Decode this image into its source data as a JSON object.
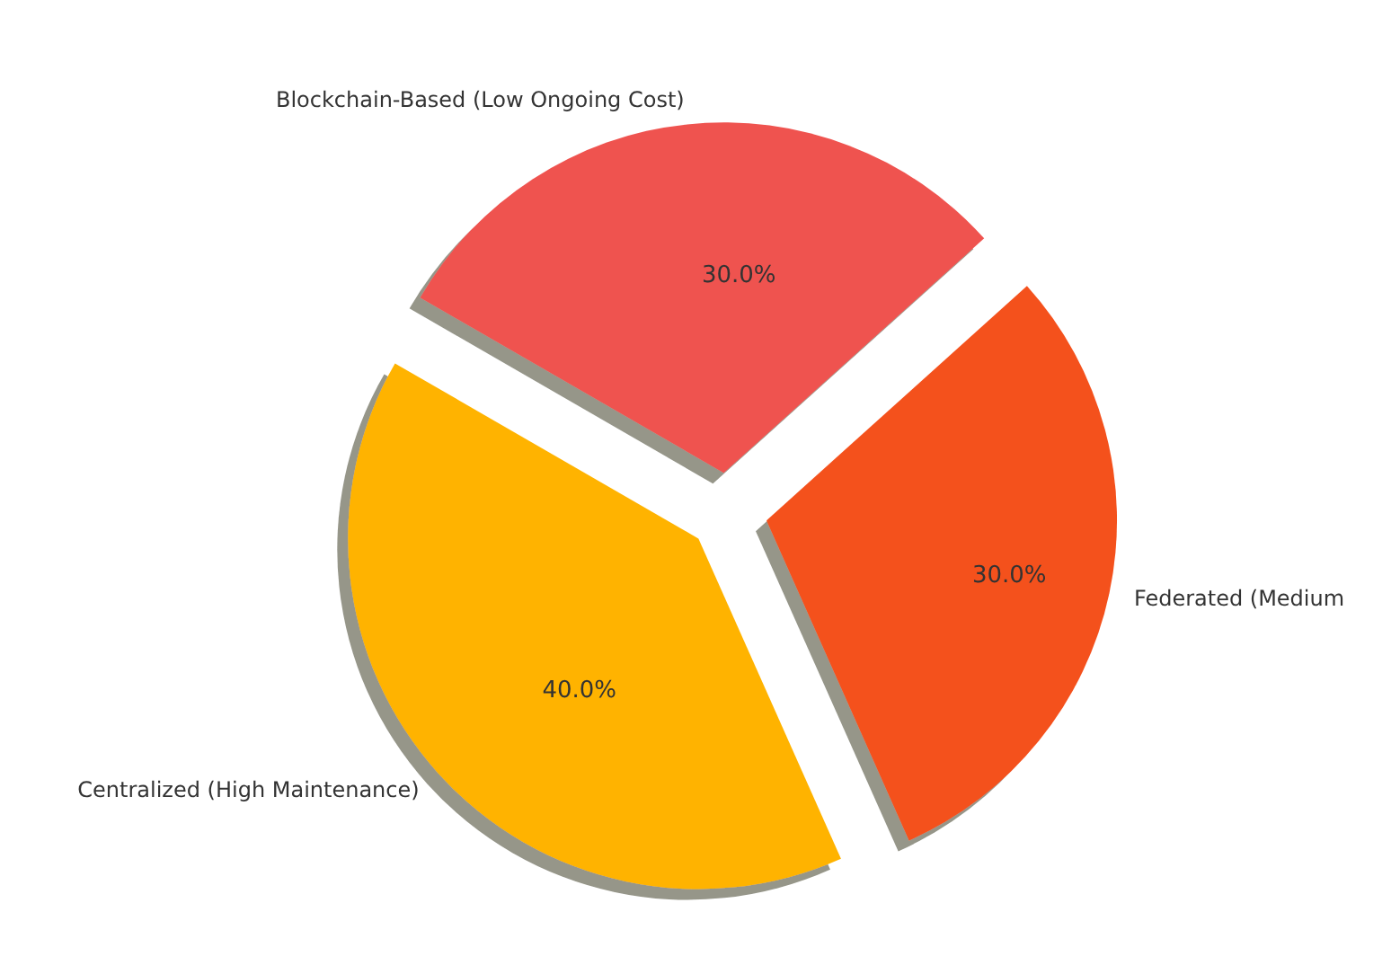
{
  "chart_data": {
    "type": "pie",
    "categories": [
      "Centralized (High Maintenance)",
      "Federated (Medium",
      "Blockchain-Based (Low Ongoing Cost)"
    ],
    "values": [
      40,
      30,
      30
    ],
    "colors": [
      "#ffb300",
      "#f4511e",
      "#ef5350"
    ],
    "value_labels": [
      "40.0%",
      "30.0%",
      "30.0%"
    ],
    "legend": false
  }
}
